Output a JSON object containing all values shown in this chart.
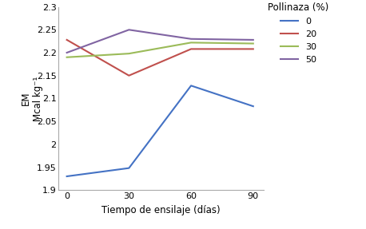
{
  "x": [
    0,
    30,
    60,
    90
  ],
  "series": {
    "0": [
      1.93,
      1.948,
      2.128,
      2.083
    ],
    "20": [
      2.228,
      2.15,
      2.208,
      2.208
    ],
    "30": [
      2.19,
      2.198,
      2.222,
      2.22
    ],
    "50": [
      2.2,
      2.25,
      2.23,
      2.228
    ]
  },
  "colors": {
    "0": "#4472C4",
    "20": "#C0504D",
    "30": "#9BBB59",
    "50": "#8064A2"
  },
  "legend_title": "Pollinaza (%)",
  "legend_labels": [
    "0",
    "20",
    "30",
    "50"
  ],
  "xlabel": "Tiempo de ensilaje (días)",
  "ylabel_line1": "EM",
  "ylabel_line2": "Mcal kg⁻¹",
  "ylim": [
    1.9,
    2.3
  ],
  "ytick_values": [
    1.9,
    1.95,
    2.0,
    2.05,
    2.1,
    2.15,
    2.2,
    2.25,
    2.3
  ],
  "ytick_labels": [
    "1.9",
    "1.95",
    "2",
    "2.05",
    "2.1",
    "2.15",
    "2.2",
    "2.25",
    "2.3"
  ],
  "xticks": [
    0,
    30,
    60,
    90
  ],
  "xlim_left": -4,
  "xlim_right": 95,
  "background_color": "#ffffff",
  "axis_fontsize": 8.5,
  "tick_fontsize": 8,
  "legend_fontsize": 8,
  "legend_title_fontsize": 8.5,
  "linewidth": 1.5
}
